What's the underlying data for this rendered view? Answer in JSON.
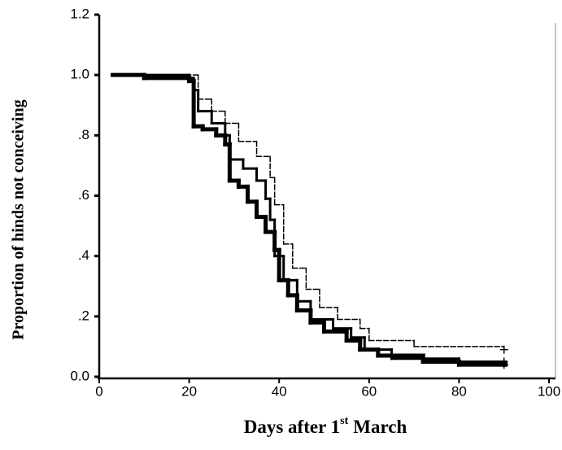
{
  "chart_data": {
    "type": "step",
    "xlabel": {
      "before": "Days after 1",
      "sup": "st",
      "after": "March"
    },
    "ylabel": "Proportion of hinds not conceiving",
    "xlim": [
      0,
      100
    ],
    "ylim": [
      0,
      1.2
    ],
    "xticks": [
      0,
      20,
      40,
      60,
      80,
      100
    ],
    "yticks": [
      {
        "value": 0,
        "label": "0.0"
      },
      {
        "value": 0.2,
        "label": ".2"
      },
      {
        "value": 0.4,
        "label": ".4"
      },
      {
        "value": 0.6,
        "label": ".6"
      },
      {
        "value": 0.8,
        "label": ".8"
      },
      {
        "value": 1.0,
        "label": "1.0"
      },
      {
        "value": 1.2,
        "label": "1.2"
      }
    ],
    "series": [
      {
        "color": "#000000",
        "line_width": 5,
        "dashed": false,
        "x": [
          3,
          10,
          20,
          21,
          23,
          26,
          28,
          29,
          31,
          33,
          35,
          37,
          39,
          40,
          42,
          44,
          47,
          50,
          55,
          58,
          62,
          72,
          80,
          90
        ],
        "values": [
          1.0,
          0.99,
          0.98,
          0.83,
          0.82,
          0.8,
          0.77,
          0.65,
          0.63,
          0.58,
          0.53,
          0.48,
          0.42,
          0.32,
          0.27,
          0.22,
          0.18,
          0.15,
          0.12,
          0.09,
          0.07,
          0.05,
          0.04,
          0.04
        ]
      },
      {
        "color": "#000000",
        "line_width": 3,
        "dashed": false,
        "x": [
          3,
          20,
          21,
          22,
          25,
          28,
          29,
          32,
          35,
          37,
          38,
          39,
          41,
          44,
          47,
          52,
          56,
          59,
          65,
          80,
          90
        ],
        "values": [
          1.0,
          0.99,
          0.95,
          0.88,
          0.84,
          0.8,
          0.72,
          0.69,
          0.65,
          0.59,
          0.52,
          0.4,
          0.32,
          0.25,
          0.19,
          0.16,
          0.13,
          0.09,
          0.06,
          0.05,
          0.05
        ]
      },
      {
        "color": "#000000",
        "line_width": 1.5,
        "dashed": true,
        "x": [
          3,
          22,
          25,
          28,
          31,
          35,
          38,
          39,
          41,
          43,
          46,
          49,
          53,
          58,
          60,
          70,
          90
        ],
        "values": [
          1.0,
          0.92,
          0.88,
          0.84,
          0.78,
          0.73,
          0.66,
          0.57,
          0.44,
          0.36,
          0.29,
          0.23,
          0.19,
          0.16,
          0.12,
          0.1,
          0.09
        ]
      }
    ]
  }
}
